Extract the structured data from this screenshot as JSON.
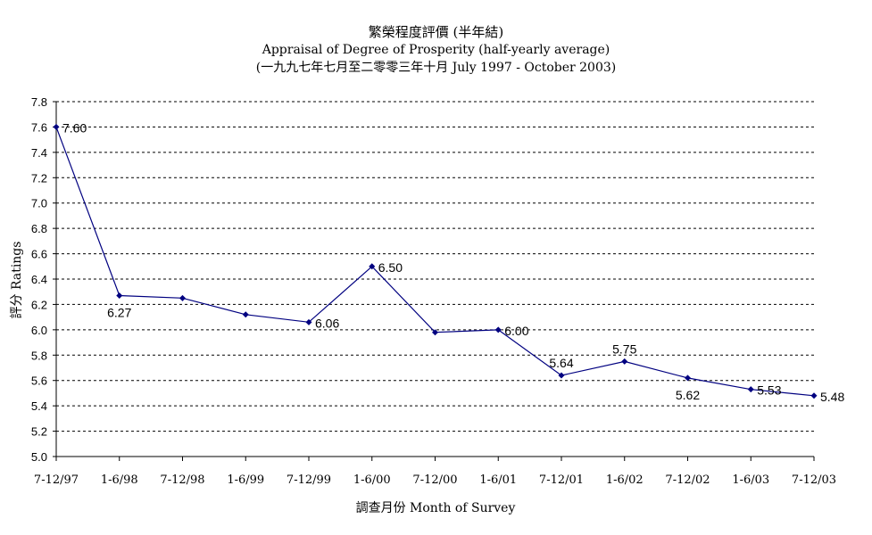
{
  "chart_data": {
    "type": "line",
    "title_zh": "繁榮程度評價 (半年結)",
    "title_en": "Appraisal of Degree of Prosperity (half-yearly average)",
    "subtitle": "(一九九七年七月至二零零三年十月 July 1997 - October 2003)",
    "xlabel": "調查月份 Month of Survey",
    "ylabel": "評分 Ratings",
    "categories": [
      "7-12/97",
      "1-6/98",
      "7-12/98",
      "1-6/99",
      "7-12/99",
      "1-6/00",
      "7-12/00",
      "1-6/01",
      "7-12/01",
      "1-6/02",
      "7-12/02",
      "1-6/03",
      "7-12/03"
    ],
    "values": [
      7.6,
      6.27,
      6.25,
      6.12,
      6.06,
      6.5,
      5.98,
      6.0,
      5.64,
      5.75,
      5.62,
      5.53,
      5.48
    ],
    "data_labels": [
      "7.60",
      "6.27",
      "",
      "",
      "6.06",
      "6.50",
      "",
      "6.00",
      "5.64",
      "5.75",
      "5.62",
      "5.53",
      "5.48"
    ],
    "label_position": [
      "right",
      "below",
      "",
      "",
      "right",
      "right",
      "",
      "right",
      "above",
      "above",
      "below",
      "right",
      "right"
    ],
    "ylim": [
      5.0,
      7.8
    ],
    "yticks": [
      "5.0",
      "5.2",
      "5.4",
      "5.6",
      "5.8",
      "6.0",
      "6.2",
      "6.4",
      "6.6",
      "6.8",
      "7.0",
      "7.2",
      "7.4",
      "7.6",
      "7.8"
    ],
    "grid": true,
    "line_color": "#000080",
    "marker_color": "#000080"
  }
}
